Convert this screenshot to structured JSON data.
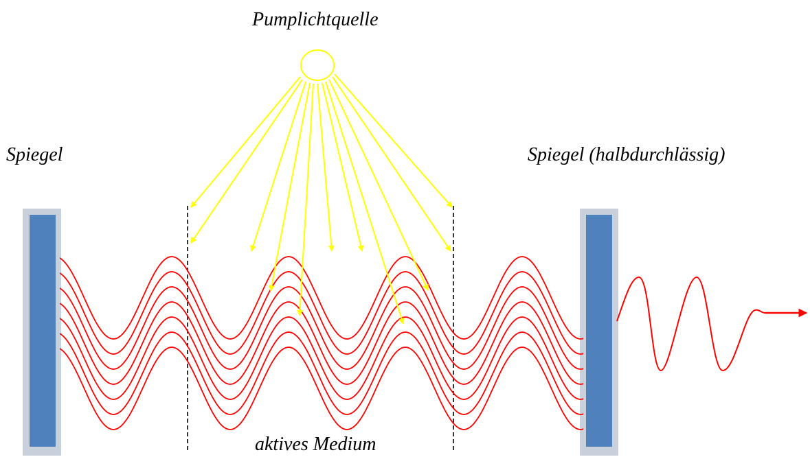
{
  "labels": {
    "pump_source": "Pumplichtquelle",
    "mirror_left": "Spiegel",
    "mirror_right": "Spiegel (halbdurchlässig)",
    "medium": "aktives Medium"
  },
  "colors": {
    "mirror_fill": "#4f81bd",
    "mirror_edge": "#c8d0dc",
    "wave": "#ff0000",
    "pump_rays": "#ffff00",
    "medium_boundary": "#000000"
  }
}
